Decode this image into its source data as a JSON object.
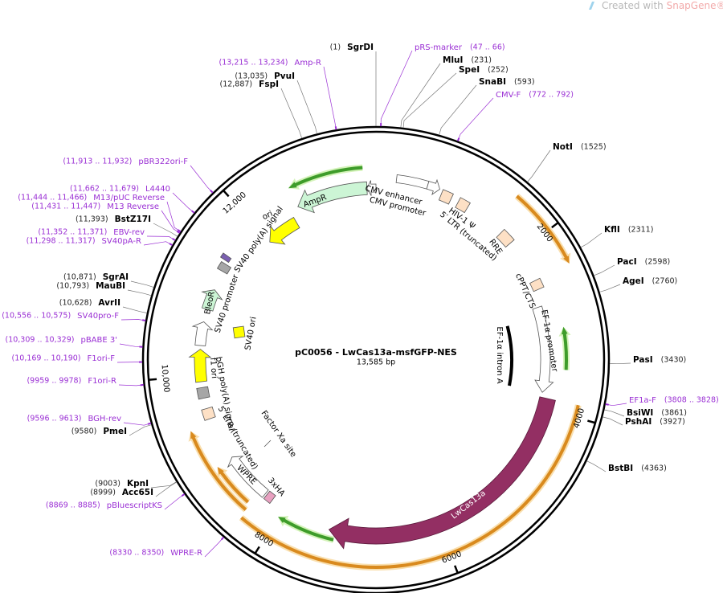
{
  "watermark": {
    "text": "Created with",
    "brand": "SnapGene®"
  },
  "map": {
    "title": "pC0056 - LwCas13a-msfGFP-NES",
    "length": "13,585 bp",
    "ticks": [
      "2000",
      "4000",
      "6000",
      "8000",
      "10,000",
      "12,000"
    ],
    "enzymes": [
      {
        "name": "SgrDI",
        "position": "(1)"
      },
      {
        "name": "MluI",
        "position": "(231)"
      },
      {
        "name": "SpeI",
        "position": "(252)"
      },
      {
        "name": "SnaBI",
        "position": "(593)"
      },
      {
        "name": "NotI",
        "position": "(1525)"
      },
      {
        "name": "KflI",
        "position": "(2311)"
      },
      {
        "name": "PacI",
        "position": "(2598)"
      },
      {
        "name": "AgeI",
        "position": "(2760)"
      },
      {
        "name": "PasI",
        "position": "(3430)"
      },
      {
        "name": "BsiWI",
        "position": "(3861)"
      },
      {
        "name": "PshAI",
        "position": "(3927)"
      },
      {
        "name": "BstBI",
        "position": "(4363)"
      },
      {
        "name": "PvuI",
        "position": "(13,035)"
      },
      {
        "name": "FspI",
        "position": "(12,887)"
      },
      {
        "name": "BstZ17I",
        "position": "(11,393)"
      },
      {
        "name": "SgrAI",
        "position": "(10,871)"
      },
      {
        "name": "MauBI",
        "position": "(10,793)"
      },
      {
        "name": "AvrII",
        "position": "(10,628)"
      },
      {
        "name": "PmeI",
        "position": "(9580)"
      },
      {
        "name": "KpnI",
        "position": "(9003)"
      },
      {
        "name": "Acc65I",
        "position": "(8999)"
      }
    ],
    "primers": [
      {
        "name": "pRS-marker",
        "range": "(47 .. 66)"
      },
      {
        "name": "CMV-F",
        "range": "(772 .. 792)"
      },
      {
        "name": "EF1a-F",
        "range": "(3808 .. 3828)"
      },
      {
        "name": "Amp-R",
        "range": "(13,215 .. 13,234)"
      },
      {
        "name": "pBR322ori-F",
        "range": "(11,913 .. 11,932)"
      },
      {
        "name": "L4440",
        "range": "(11,662 .. 11,679)"
      },
      {
        "name": "M13/pUC Reverse",
        "range": "(11,444 .. 11,466)"
      },
      {
        "name": "M13 Reverse",
        "range": "(11,431 .. 11,447)"
      },
      {
        "name": "EBV-rev",
        "range": "(11,352 .. 11,371)"
      },
      {
        "name": "SV40pA-R",
        "range": "(11,298 .. 11,317)"
      },
      {
        "name": "SV40pro-F",
        "range": "(10,556 .. 10,575)"
      },
      {
        "name": "pBABE 3'",
        "range": "(10,309 .. 10,329)"
      },
      {
        "name": "F1ori-F",
        "range": "(10,169 .. 10,190)"
      },
      {
        "name": "F1ori-R",
        "range": "(9959 .. 9978)"
      },
      {
        "name": "BGH-rev",
        "range": "(9596 .. 9613)"
      },
      {
        "name": "pBluescriptKS",
        "range": "(8869 .. 8885)"
      },
      {
        "name": "WPRE-R",
        "range": "(8330 .. 8350)"
      }
    ],
    "features": [
      "CMV enhancer",
      "CMV promoter",
      "HIV-1 Ψ",
      "5′ LTR (truncated)",
      "RRE",
      "cPPT/CTS",
      "EF-1α promoter",
      "EF-1α intron A",
      "LwCas13a",
      "Factor Xa site",
      "3xHA",
      "WPRE",
      "5′ LTR (truncated)",
      "bGH poly(A) signal",
      "f1 ori",
      "SV40 ori",
      "SV40 promoter",
      "BleoR",
      "SV40 poly(A) signal",
      "ori",
      "AmpR"
    ]
  }
}
